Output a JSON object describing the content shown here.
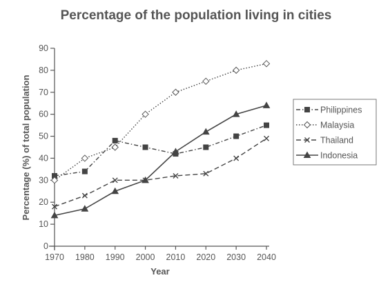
{
  "chart_data": {
    "type": "line",
    "title": "Percentage of the population living in cities",
    "xlabel": "Year",
    "ylabel": "Percentage (%) of total population",
    "x": [
      1970,
      1980,
      1990,
      2000,
      2010,
      2020,
      2030,
      2040
    ],
    "ylim": [
      0,
      90
    ],
    "yticks": [
      0,
      10,
      20,
      30,
      40,
      50,
      60,
      70,
      80,
      90
    ],
    "grid": false,
    "legend": "right",
    "series": [
      {
        "name": "Philippines",
        "marker": "square",
        "dash": "dash-dot",
        "values": [
          32,
          34,
          48,
          45,
          42,
          45,
          50,
          55
        ]
      },
      {
        "name": "Malaysia",
        "marker": "diamond",
        "dash": "dotted",
        "values": [
          30,
          40,
          45,
          60,
          70,
          75,
          80,
          83
        ]
      },
      {
        "name": "Thailand",
        "marker": "x",
        "dash": "dashed",
        "values": [
          18,
          23,
          30,
          30,
          32,
          33,
          40,
          49
        ]
      },
      {
        "name": "Indonesia",
        "marker": "triangle",
        "dash": "solid",
        "values": [
          14,
          17,
          25,
          30,
          43,
          52,
          60,
          64
        ]
      }
    ]
  }
}
